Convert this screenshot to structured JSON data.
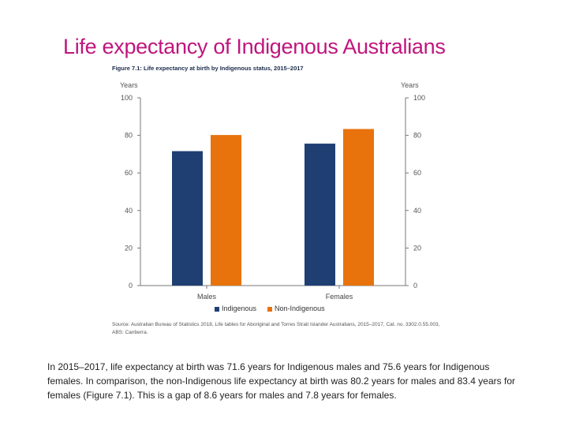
{
  "slide": {
    "title": "Life expectancy of Indigenous Australians"
  },
  "figure": {
    "title": "Figure 7.1: Life expectancy at birth by Indigenous status, 2015–2017",
    "left_axis_unit": "Years",
    "right_axis_unit": "Years",
    "source": "Source: Australian Bureau of Statistics 2018, Life tables for Aboriginal and Torres Strait Islander Australians, 2015–2017, Cat. no. 3302.0.55.003, ABS: Canberra."
  },
  "chart_data": {
    "type": "bar",
    "title": "Figure 7.1: Life expectancy at birth by Indigenous status, 2015–2017",
    "categories": [
      "Males",
      "Females"
    ],
    "series": [
      {
        "name": "Indigenous",
        "values": [
          71.6,
          75.6
        ],
        "color": "#1f3f73"
      },
      {
        "name": "Non-Indigenous",
        "values": [
          80.2,
          83.4
        ],
        "color": "#e8730c"
      }
    ],
    "ylabel": "Years",
    "y2label": "Years",
    "ylim": [
      0,
      100
    ],
    "yticks": [
      0,
      20,
      40,
      60,
      80,
      100
    ],
    "grid": false,
    "legend_position": "bottom"
  },
  "body_text": "In 2015–2017, life expectancy at birth was 71.6 years for Indigenous males and 75.6 years for Indigenous females. In comparison, the non-Indigenous life expectancy at birth was 80.2 years for males and 83.4 years for females (Figure 7.1). This is a gap of 8.6 years for males and 7.8 years for females."
}
